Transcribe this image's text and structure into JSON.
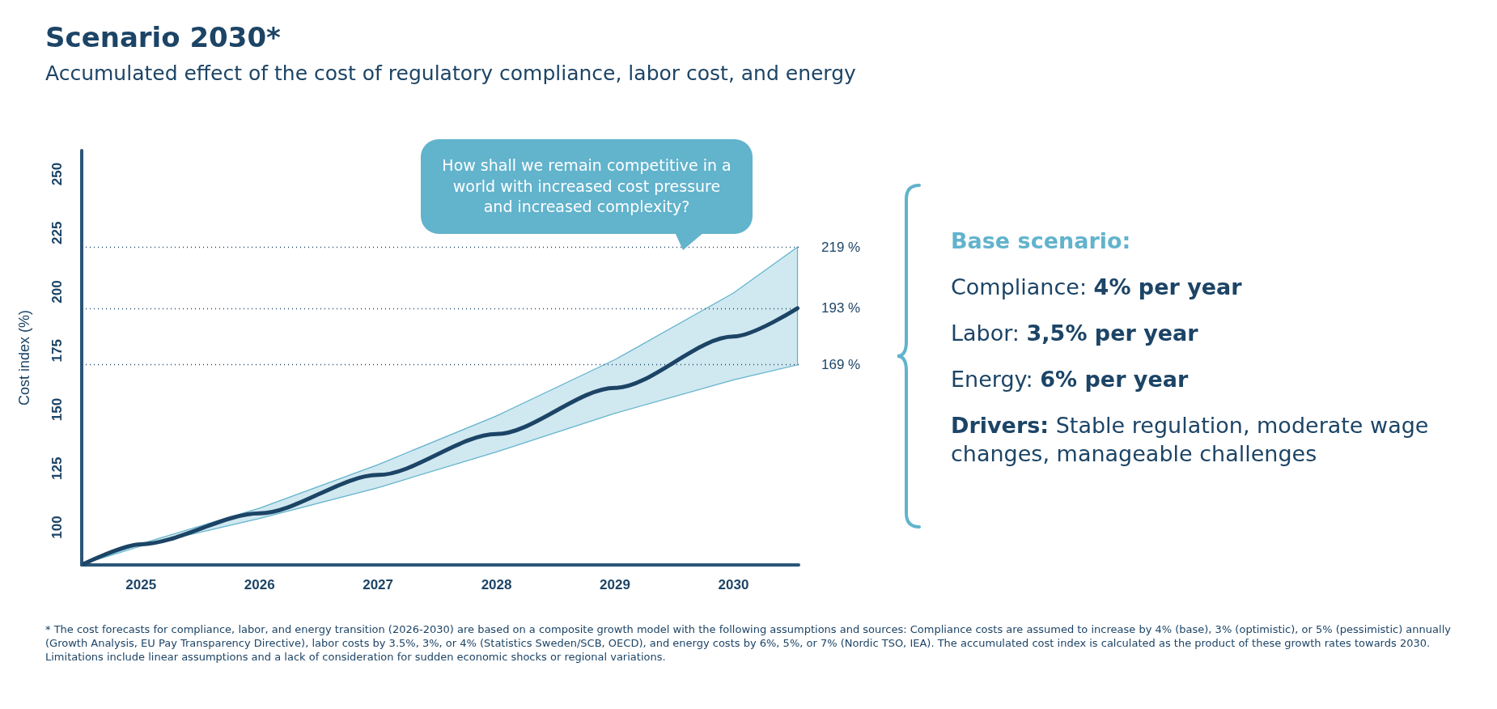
{
  "chart_data": {
    "type": "line",
    "title": "Scenario 2030*",
    "subtitle": "Accumulated effect of the cost of regulatory compliance, labor cost, and energy",
    "ylabel": "Cost index (%)",
    "x": [
      2024.52,
      2025,
      2026,
      2027,
      2028,
      2029,
      2030,
      2030.54
    ],
    "series": [
      {
        "color": "#1c4466",
        "values": [
          84.5,
          92.8,
          105.9,
          122.2,
          139.6,
          159.2,
          181.0,
          193
        ],
        "lower": [
          84.5,
          92,
          103.7,
          116.8,
          132.0,
          148.4,
          162.6,
          169
        ],
        "upper": [
          84.5,
          93,
          108.1,
          126.6,
          147.3,
          171.2,
          199.5,
          219
        ]
      }
    ],
    "xlim": [
      2024.5,
      2030.55
    ],
    "xticks": [
      2025,
      2026,
      2027,
      2028,
      2029,
      2030
    ],
    "ylim": [
      84,
      260
    ],
    "yticks": [
      100,
      125,
      150,
      175,
      200,
      225,
      250
    ],
    "grid": false,
    "marker": "none",
    "ref_lines": [
      {
        "axis": "y",
        "value": 219,
        "label": "219 %",
        "color": "#1c4466",
        "line_style": "dotted"
      },
      {
        "axis": "y",
        "value": 193,
        "label": "193 %",
        "color": "#1c4466",
        "line_style": "dotted"
      },
      {
        "axis": "y",
        "value": 169,
        "label": "169 %",
        "color": "#1c4466",
        "line_style": "dotted"
      }
    ],
    "annotations": [
      "How shall we remain competitive in a world with increased cost pressure and increased complexity?",
      "Base scenario:",
      "Compliance: 4% per year",
      "Labor: 3,5% per year",
      "Energy: 6% per year",
      "Drivers: Stable regulation, moderate wage changes, manageable challenges",
      "* The cost forecasts for compliance, labor, and energy transition (2026-2030) are based on a composite growth model with the following assumptions and sources: Compliance costs are assumed to increase by 4% (base), 3% (optimistic), or 5% (pessimistic) annually (Growth Analysis, EU Pay Transparency Directive), labor costs by 3.5%, 3%, or 4% (Statistics Sweden/SCB, OECD), and energy costs by 6%, 5%, or 7% (Nordic TSO, IEA). The accumulated cost index is calculated as the product of these growth rates towards 2030. Limitations include linear assumptions and a lack of consideration for sudden economic shocks or regional variations."
    ]
  }
}
